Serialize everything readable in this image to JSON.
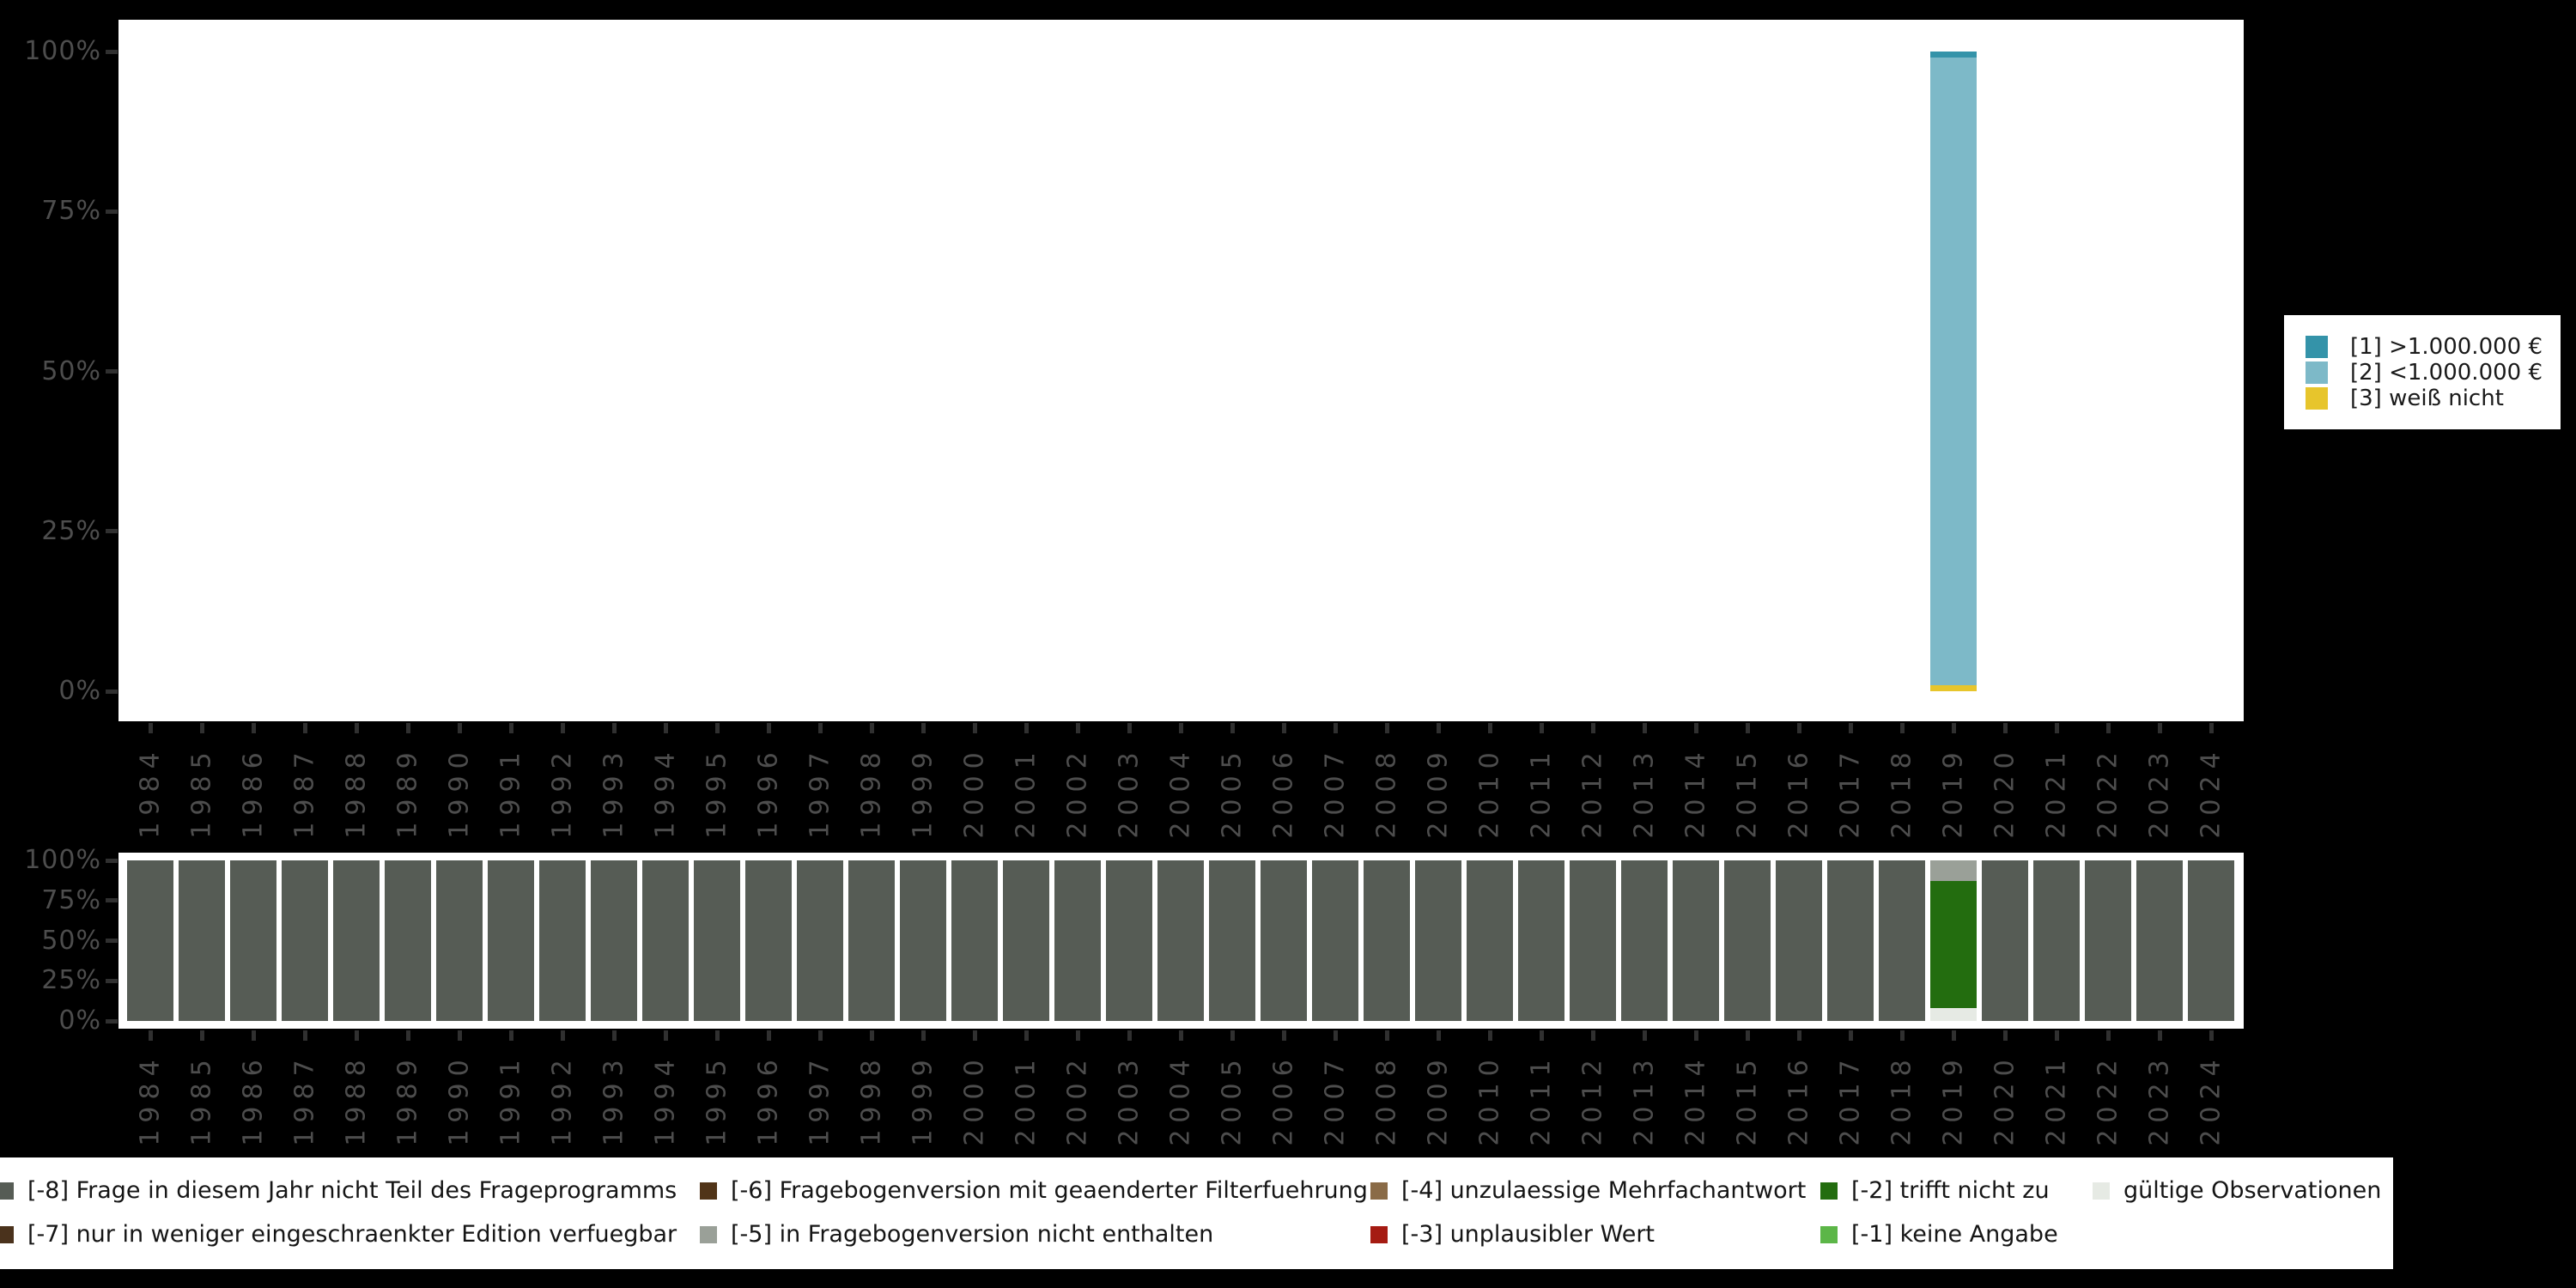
{
  "figure": {
    "background_color": "#000000",
    "plot_background_color": "#ffffff",
    "axis_text_color": "#4d4d4d",
    "tick_color": "#303030"
  },
  "chart_data": [
    {
      "type": "bar",
      "stacked": true,
      "title": "",
      "xlabel": "",
      "ylabel": "",
      "unit": "percent",
      "ylim": [
        0,
        100
      ],
      "yticks": [
        "0%",
        "25%",
        "50%",
        "75%",
        "100%"
      ],
      "grid": false,
      "legend_position": "right",
      "categories": [
        "1984",
        "1985",
        "1986",
        "1987",
        "1988",
        "1989",
        "1990",
        "1991",
        "1992",
        "1993",
        "1994",
        "1995",
        "1996",
        "1997",
        "1998",
        "1999",
        "2000",
        "2001",
        "2002",
        "2003",
        "2004",
        "2005",
        "2006",
        "2007",
        "2008",
        "2009",
        "2010",
        "2011",
        "2012",
        "2013",
        "2014",
        "2015",
        "2016",
        "2017",
        "2018",
        "2019",
        "2020",
        "2021",
        "2022",
        "2023",
        "2024"
      ],
      "series": [
        {
          "name": "[1] >1.000.000 €",
          "color": "#3493a9",
          "default": 0,
          "values_by_year": {
            "2019": 1
          }
        },
        {
          "name": "[2] <1.000.000 €",
          "color": "#7db9c8",
          "default": 0,
          "values_by_year": {
            "2019": 98
          }
        },
        {
          "name": "[3] weiß nicht",
          "color": "#e7c52c",
          "default": 0,
          "values_by_year": {
            "2019": 1
          }
        }
      ]
    },
    {
      "type": "bar",
      "stacked": true,
      "title": "",
      "xlabel": "",
      "ylabel": "",
      "unit": "percent",
      "ylim": [
        0,
        100
      ],
      "yticks": [
        "0%",
        "25%",
        "50%",
        "75%",
        "100%"
      ],
      "grid": false,
      "legend_position": "bottom",
      "categories": [
        "1984",
        "1985",
        "1986",
        "1987",
        "1988",
        "1989",
        "1990",
        "1991",
        "1992",
        "1993",
        "1994",
        "1995",
        "1996",
        "1997",
        "1998",
        "1999",
        "2000",
        "2001",
        "2002",
        "2003",
        "2004",
        "2005",
        "2006",
        "2007",
        "2008",
        "2009",
        "2010",
        "2011",
        "2012",
        "2013",
        "2014",
        "2015",
        "2016",
        "2017",
        "2018",
        "2019",
        "2020",
        "2021",
        "2022",
        "2023",
        "2024"
      ],
      "series": [
        {
          "name": "[-8] Frage in diesem Jahr nicht Teil des Frageprogramms",
          "color": "#565c55",
          "default": 100,
          "values_by_year": {
            "2019": 0
          }
        },
        {
          "name": "[-7] nur in weniger eingeschraenkter Edition verfuegbar",
          "color": "#4a321c",
          "default": 0,
          "values_by_year": {}
        },
        {
          "name": "[-6] Fragebogenversion mit geaenderter Filterfuehrung",
          "color": "#513418",
          "default": 0,
          "values_by_year": {}
        },
        {
          "name": "[-5] in Fragebogenversion nicht enthalten",
          "color": "#9aa098",
          "default": 0,
          "values_by_year": {
            "2019": 13
          }
        },
        {
          "name": "[-4] unzulaessige Mehrfachantwort",
          "color": "#8a6b47",
          "default": 0,
          "values_by_year": {}
        },
        {
          "name": "[-3] unplausibler Wert",
          "color": "#a51b12",
          "default": 0,
          "values_by_year": {}
        },
        {
          "name": "[-2] trifft nicht zu",
          "color": "#236d0f",
          "default": 0,
          "values_by_year": {
            "2019": 79
          }
        },
        {
          "name": "[-1] keine Angabe",
          "color": "#5cb648",
          "default": 0,
          "values_by_year": {}
        },
        {
          "name": "gültige Observationen",
          "color": "#e6eae4",
          "default": 0,
          "values_by_year": {
            "2019": 8
          }
        }
      ]
    }
  ]
}
